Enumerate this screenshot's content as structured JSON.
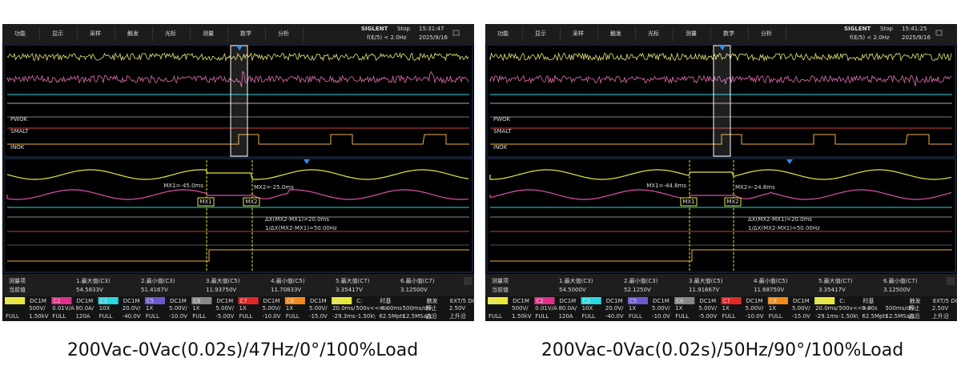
{
  "scopes": [
    {
      "menu": [
        "功能",
        "显示",
        "采样",
        "触发",
        "光标",
        "测量",
        "数学",
        "分析"
      ],
      "brand": "SIGLENT",
      "status": "Stop",
      "trigger": "f(E/5) < 2.0Hz",
      "time": "15:31:47",
      "date": "2025/9/16",
      "labels": {
        "pwok": "PWOK",
        "smalt": "SMALT",
        "inok": "INOK"
      },
      "cursors": {
        "mx1_readout": "MX1=-45.0ms",
        "mx2_readout": "MX2=-25.0ms",
        "mx1": "MX1",
        "mx2": "MX2",
        "delta": "ΔX(MX2-MX1)=20.0ms",
        "inverse": "1/ΔX(MX2-MX1)=50.00Hz"
      },
      "measure": {
        "header": "测量项",
        "current": "当前值",
        "items": [
          {
            "name": "1.最大值(C3)",
            "value": "54.5833V"
          },
          {
            "name": "2.最小值(C3)",
            "value": "51.4167V"
          },
          {
            "name": "3.最大值(C5)",
            "value": "11.93750V"
          },
          {
            "name": "4.最小值(C5)",
            "value": "11.70833V"
          },
          {
            "name": "5.最大值(C7)",
            "value": "3.35417V"
          },
          {
            "name": "6.最小值(C7)",
            "value": "3.12500V"
          }
        ]
      },
      "channel_bar": [
        {
          "top": "C1",
          "bottom": "FULL"
        },
        {
          "top": "DC1M",
          "mid": "500V/",
          "bottom": "1.50kV"
        },
        {
          "top": "C2",
          "mid": "0.01V/A",
          "bottom": "FULL"
        },
        {
          "top": "DC1M",
          "mid": "80.0A/",
          "bottom": "120A"
        },
        {
          "top": "C3",
          "mid": "10X",
          "bottom": "FULL"
        },
        {
          "top": "DC1M",
          "mid": "20.0V/",
          "bottom": "-40.0V"
        },
        {
          "top": "C5",
          "mid": "1X",
          "bottom": "FULL"
        },
        {
          "top": "DC1M",
          "mid": "5.00V/",
          "bottom": "-10.0V"
        },
        {
          "top": "C6",
          "mid": "1X",
          "bottom": "FULL"
        },
        {
          "top": "DC1M",
          "mid": "5.00V/",
          "bottom": "-5.00V"
        },
        {
          "top": "C7",
          "mid": "1X",
          "bottom": "FULL"
        },
        {
          "top": "DC1M",
          "mid": "5.00V/",
          "bottom": "-10.0V"
        },
        {
          "top": "C8",
          "mid": "1X",
          "bottom": "FULL"
        },
        {
          "top": "DC1M",
          "mid": "5.00V/",
          "bottom": "-15.0V"
        },
        {
          "top": "Z1",
          "mid": "20.0ms/",
          "bottom": "-29.3ms"
        },
        {
          "top": "C:",
          "mid": "500v<<>>",
          "bottom": "-1.50k\\"
        },
        {
          "top": "时基",
          "mid": "-8.00ms",
          "bottom": "62.5Mpts"
        },
        {
          "mid": "500ms/div",
          "bottom": "12.5MSa/s"
        },
        {
          "top": "触发",
          "mid": "停止",
          "bottom": "边沿"
        },
        {
          "top": "EXT/5 DC",
          "mid": "2.50V",
          "bottom": "上升沿"
        }
      ]
    },
    {
      "menu": [
        "功能",
        "显示",
        "采样",
        "触发",
        "光标",
        "测量",
        "数学",
        "分析"
      ],
      "brand": "SIGLENT",
      "status": "Stop",
      "trigger": "f(E/5) < 2.0Hz",
      "time": "15:41:25",
      "date": "2025/9/16",
      "labels": {
        "pwok": "PWOK",
        "smalt": "SMALT",
        "inok": "INOK"
      },
      "cursors": {
        "mx1_readout": "MX1=-44.8ms",
        "mx2_readout": "MX2=-24.8ms",
        "mx1": "MX1",
        "mx2": "MX2",
        "delta": "ΔX(MX2-MX1)=20.0ms",
        "inverse": "1/ΔX(MX2-MX1)=50.00Hz"
      },
      "measure": {
        "header": "测量项",
        "current": "当前值",
        "items": [
          {
            "name": "1.最大值(C3)",
            "value": "54.5000V"
          },
          {
            "name": "2.最小值(C3)",
            "value": "52.1250V"
          },
          {
            "name": "3.最大值(C5)",
            "value": "11.91667V"
          },
          {
            "name": "4.最小值(C5)",
            "value": "11.68750V"
          },
          {
            "name": "5.最大值(C7)",
            "value": "3.35417V"
          },
          {
            "name": "6.最小值(C7)",
            "value": "3.12500V"
          }
        ]
      },
      "channel_bar": [
        {
          "top": "C1",
          "bottom": "FULL"
        },
        {
          "top": "DC1M",
          "mid": "500V/",
          "bottom": "1.50kV"
        },
        {
          "top": "C2",
          "mid": "0.01V/A",
          "bottom": "FULL"
        },
        {
          "top": "DC1M",
          "mid": "80.0A/",
          "bottom": "120A"
        },
        {
          "top": "C3",
          "mid": "10X",
          "bottom": "FULL"
        },
        {
          "top": "DC1M",
          "mid": "20.0V/",
          "bottom": "-40.0V"
        },
        {
          "top": "C5",
          "mid": "1X",
          "bottom": "FULL"
        },
        {
          "top": "DC1M",
          "mid": "5.00V/",
          "bottom": "-10.0V"
        },
        {
          "top": "C6",
          "mid": "1X",
          "bottom": "FULL"
        },
        {
          "top": "DC1M",
          "mid": "5.00V/",
          "bottom": "-5.00V"
        },
        {
          "top": "C7",
          "mid": "1X",
          "bottom": "FULL"
        },
        {
          "top": "DC1M",
          "mid": "5.00V/",
          "bottom": "-10.0V"
        },
        {
          "top": "C8",
          "mid": "1X",
          "bottom": "FULL"
        },
        {
          "top": "DC1M",
          "mid": "5.00V/",
          "bottom": "-15.0V"
        },
        {
          "top": "Z1",
          "mid": "20.0ms/",
          "bottom": "-29.1ms"
        },
        {
          "top": "C:",
          "mid": "500v<<>>",
          "bottom": "-1.50k\\"
        },
        {
          "top": "时基",
          "mid": "0.00s",
          "bottom": "62.5Mpts"
        },
        {
          "mid": "500ms/div",
          "bottom": "12.5MSa/s"
        },
        {
          "top": "触发",
          "mid": "停止",
          "bottom": "边沿"
        },
        {
          "top": "EXT/5 DC",
          "mid": "2.50V",
          "bottom": "上升沿"
        }
      ]
    }
  ],
  "captions": [
    "200Vac-0Vac(0.02s)/47Hz/0°/100%Load",
    "200Vac-0Vac(0.02s)/50Hz/90°/100%Load"
  ]
}
